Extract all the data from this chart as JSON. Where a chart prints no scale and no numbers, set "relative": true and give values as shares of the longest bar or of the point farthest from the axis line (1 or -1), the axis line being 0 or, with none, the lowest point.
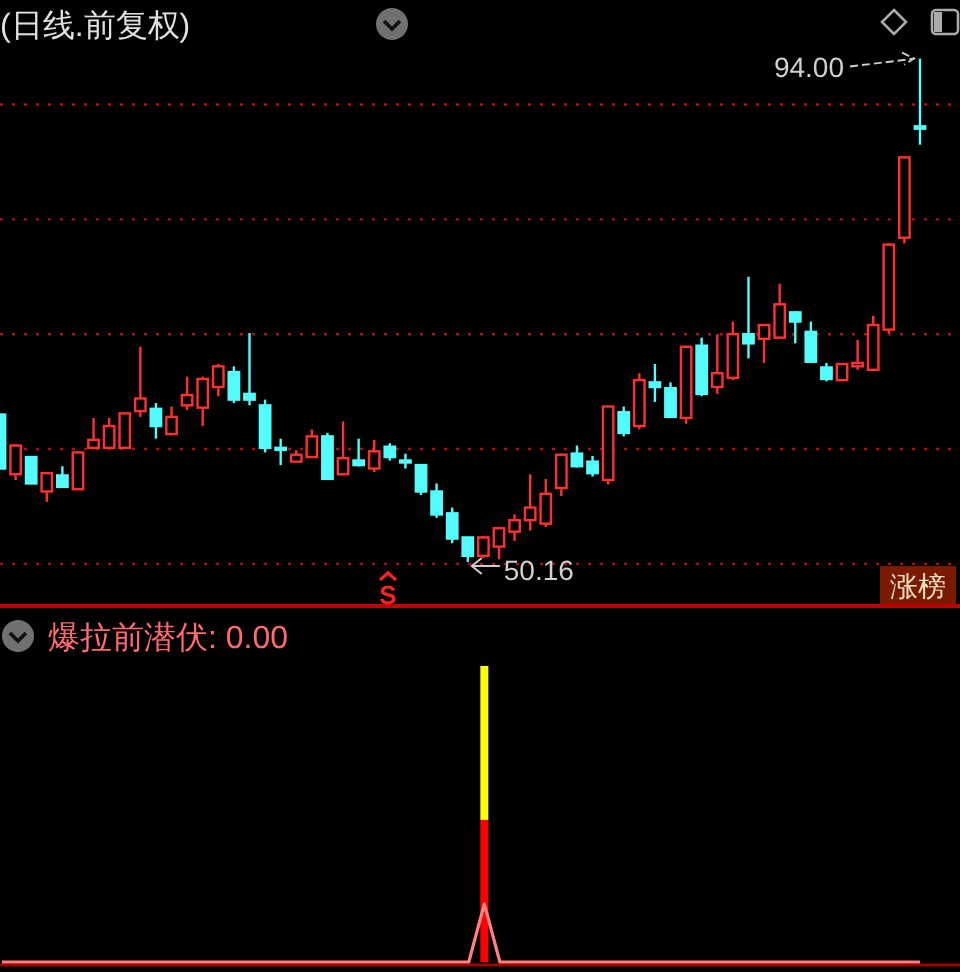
{
  "chart_data": [
    {
      "type": "candlestick",
      "title": "(日线.前复权)",
      "categories": [
        null,
        null,
        null,
        null,
        null,
        null,
        null,
        null,
        null,
        null,
        null,
        null,
        null,
        null,
        null,
        null,
        null,
        null,
        null,
        null,
        null,
        null,
        null,
        null,
        null,
        null,
        null,
        null,
        null,
        null,
        null,
        null,
        null,
        null,
        null,
        null,
        null,
        null,
        null,
        null,
        null,
        null,
        null,
        null,
        null,
        null,
        null,
        null,
        null,
        null,
        null,
        null,
        null,
        null,
        null,
        null,
        null,
        null,
        null,
        null
      ],
      "ohlc": [
        [
          63.0,
          63.0,
          58.3,
          58.3
        ],
        [
          57.8,
          60.4,
          57.3,
          60.3
        ],
        [
          59.3,
          59.3,
          57.0,
          57.0
        ],
        [
          56.3,
          57.9,
          55.4,
          57.9
        ],
        [
          57.7,
          58.5,
          56.7,
          56.7
        ],
        [
          56.5,
          59.8,
          56.5,
          59.7
        ],
        [
          60.1,
          62.7,
          60.0,
          60.8
        ],
        [
          60.1,
          62.7,
          60.0,
          62.0
        ],
        [
          60.1,
          63.1,
          60.0,
          63.1
        ],
        [
          63.3,
          68.9,
          62.8,
          64.4
        ],
        [
          63.5,
          64.0,
          60.9,
          62.0
        ],
        [
          61.3,
          63.7,
          61.2,
          62.8
        ],
        [
          63.8,
          66.3,
          63.4,
          64.7
        ],
        [
          63.6,
          66.3,
          62.0,
          66.1
        ],
        [
          65.4,
          67.4,
          64.6,
          67.2
        ],
        [
          66.7,
          67.2,
          64.0,
          64.3
        ],
        [
          64.8,
          70.1,
          63.8,
          64.3
        ],
        [
          63.8,
          64.3,
          59.7,
          60.1
        ],
        [
          60.1,
          60.9,
          58.6,
          60.0
        ],
        [
          58.9,
          59.9,
          58.9,
          59.5
        ],
        [
          59.3,
          61.7,
          59.3,
          61.1
        ],
        [
          61.1,
          61.4,
          57.4,
          57.4
        ],
        [
          57.8,
          62.4,
          57.7,
          59.2
        ],
        [
          59.0,
          60.9,
          58.5,
          58.6
        ],
        [
          58.3,
          60.8,
          58.0,
          59.8
        ],
        [
          60.2,
          60.5,
          59.0,
          59.3
        ],
        [
          59.0,
          59.6,
          58.3,
          58.9
        ],
        [
          58.6,
          58.7,
          56.0,
          56.3
        ],
        [
          56.3,
          57.0,
          54.0,
          54.3
        ],
        [
          54.4,
          54.9,
          51.8,
          52.2
        ],
        [
          52.3,
          52.3,
          50.16,
          50.7
        ],
        [
          50.7,
          52.4,
          50.5,
          52.3
        ],
        [
          51.5,
          53.1,
          50.4,
          53.1
        ],
        [
          52.8,
          54.3,
          52.0,
          53.8
        ],
        [
          53.8,
          57.8,
          52.9,
          54.9
        ],
        [
          53.5,
          57.4,
          53.2,
          56.1
        ],
        [
          56.6,
          59.6,
          55.9,
          59.5
        ],
        [
          59.6,
          60.3,
          58.4,
          58.5
        ],
        [
          58.9,
          59.4,
          57.6,
          57.9
        ],
        [
          57.3,
          63.7,
          56.9,
          63.7
        ],
        [
          63.2,
          63.7,
          61.1,
          61.4
        ],
        [
          62.0,
          66.6,
          61.7,
          66.0
        ],
        [
          65.8,
          67.4,
          64.1,
          65.4
        ],
        [
          65.3,
          65.8,
          62.7,
          62.8
        ],
        [
          62.7,
          69.0,
          62.2,
          68.9
        ],
        [
          69.0,
          69.7,
          64.6,
          64.8
        ],
        [
          65.4,
          70.0,
          64.8,
          66.6
        ],
        [
          66.2,
          71.1,
          66.0,
          70.0
        ],
        [
          70.0,
          75.0,
          67.9,
          69.2
        ],
        [
          69.6,
          70.8,
          67.5,
          70.8
        ],
        [
          69.7,
          74.4,
          69.6,
          72.6
        ],
        [
          71.9,
          72.0,
          69.2,
          71.1
        ],
        [
          70.2,
          71.1,
          67.5,
          67.6
        ],
        [
          67.1,
          67.5,
          65.9,
          66.1
        ],
        [
          66.0,
          67.4,
          65.9,
          67.4
        ],
        [
          67.2,
          69.5,
          66.9,
          67.5
        ],
        [
          66.9,
          71.6,
          66.8,
          70.8
        ],
        [
          70.4,
          77.9,
          70.1,
          77.8
        ],
        [
          78.4,
          85.4,
          77.9,
          85.4
        ],
        [
          88.1,
          94.0,
          86.5,
          87.9
        ]
      ],
      "yticks": [
        {
          "value": 50,
          "label": null
        },
        {
          "value": 60,
          "label": null
        },
        {
          "value": 70,
          "label": null
        },
        {
          "value": 80,
          "label": null
        },
        {
          "value": 90,
          "label": null
        }
      ],
      "grid": "y",
      "annotations": [
        "94.00",
        "50.16",
        "S",
        "涨榜"
      ]
    },
    {
      "type": "bar",
      "stacked": true,
      "relative": true,
      "categories": [
        null
      ],
      "series": [
        {
          "color": "#ff0000",
          "values": [
            0.48
          ]
        },
        {
          "color": "#ffff00",
          "values": [
            0.52
          ]
        }
      ]
    },
    {
      "type": "line",
      "title": "爆拉前潜伏: 0.00",
      "relative": true,
      "categories": [
        null,
        null,
        null,
        null,
        null,
        null,
        null,
        null,
        null,
        null,
        null,
        null,
        null,
        null,
        null,
        null,
        null,
        null,
        null,
        null,
        null,
        null,
        null,
        null,
        null,
        null,
        null,
        null,
        null,
        null,
        null,
        null,
        null,
        null,
        null,
        null,
        null,
        null,
        null,
        null,
        null,
        null,
        null,
        null,
        null,
        null,
        null,
        null,
        null,
        null,
        null,
        null,
        null,
        null,
        null,
        null,
        null,
        null,
        null,
        null
      ],
      "series": [
        {
          "color": "#ff8080",
          "values": [
            0,
            0,
            0,
            0,
            0,
            0,
            0,
            0,
            0,
            0,
            0,
            0,
            0,
            0,
            0,
            0,
            0,
            0,
            0,
            0,
            0,
            0,
            0,
            0,
            0,
            0,
            0,
            0,
            0,
            0,
            0,
            1,
            0,
            0,
            0,
            0,
            0,
            0,
            0,
            0,
            0,
            0,
            0,
            0,
            0,
            0,
            0,
            0,
            0,
            0,
            0,
            0,
            0,
            0,
            0,
            0,
            0,
            0,
            0,
            0
          ]
        }
      ]
    }
  ]
}
